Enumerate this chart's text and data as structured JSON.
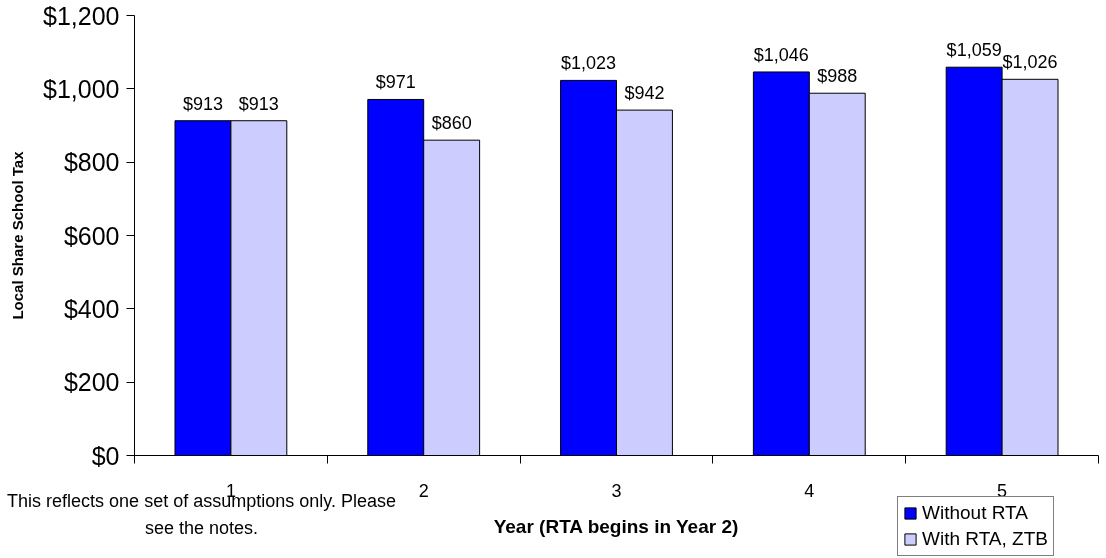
{
  "chart_data": {
    "type": "bar",
    "xlabel": "Year (RTA begins in Year 2)",
    "ylabel": "Local Share School Tax",
    "categories": [
      "1",
      "2",
      "3",
      "4",
      "5"
    ],
    "series": [
      {
        "name": "Without RTA",
        "color": "#0000ff",
        "values": [
          913,
          971,
          1023,
          1046,
          1059
        ],
        "value_labels": [
          "$913",
          "$971",
          "$1,023",
          "$1,046",
          "$1,059"
        ]
      },
      {
        "name": "With RTA, ZTB",
        "color": "#ccccff",
        "values": [
          913,
          860,
          942,
          988,
          1026
        ],
        "value_labels": [
          "$913",
          "$860",
          "$942",
          "$988",
          "$1,026"
        ]
      }
    ],
    "ylim": [
      0,
      1200
    ],
    "yticks": [
      {
        "value": 0,
        "label": "$0"
      },
      {
        "value": 200,
        "label": "$200"
      },
      {
        "value": 400,
        "label": "$400"
      },
      {
        "value": 600,
        "label": "$600"
      },
      {
        "value": 800,
        "label": "$800"
      },
      {
        "value": 1000,
        "label": "$1,000"
      },
      {
        "value": 1200,
        "label": "$1,200"
      }
    ],
    "grid": false,
    "legend": "bottom right",
    "annotations": [
      "This reflects one set of assumptions only. Please see the notes."
    ]
  }
}
